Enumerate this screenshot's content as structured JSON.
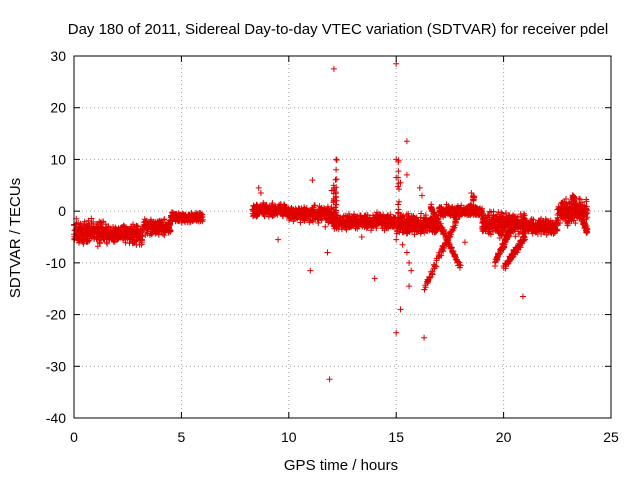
{
  "chart_data": {
    "type": "scatter",
    "title": "Day 180 of 2011, Sidereal Day-to-day VTEC variation (SDTVAR) for receiver pdel",
    "xlabel": "GPS time / hours",
    "ylabel": "SDTVAR / TECUs",
    "xlim": [
      0,
      25
    ],
    "ylim": [
      -40,
      30
    ],
    "xticks": [
      0,
      5,
      10,
      15,
      20,
      25
    ],
    "yticks": [
      -40,
      -30,
      -20,
      -10,
      0,
      10,
      20,
      30
    ],
    "grid": true,
    "marker": "+",
    "colors": {
      "points": "#e00000",
      "axes": "#000000",
      "grid": "#a0a0a0"
    },
    "segments": [
      {
        "x0": 0.0,
        "x1": 1.4,
        "center": -4,
        "spread": 3
      },
      {
        "x0": 1.4,
        "x1": 3.2,
        "center": -4.5,
        "spread": 2.5
      },
      {
        "x0": 3.2,
        "x1": 4.5,
        "center": -3,
        "spread": 2
      },
      {
        "x0": 4.5,
        "x1": 6.0,
        "center": -1.2,
        "spread": 1.2
      },
      {
        "x0": 8.3,
        "x1": 10.0,
        "center": 0.2,
        "spread": 1.8
      },
      {
        "x0": 10.0,
        "x1": 12.0,
        "center": -0.5,
        "spread": 2
      },
      {
        "x0": 12.0,
        "x1": 15.0,
        "center": -2,
        "spread": 2
      },
      {
        "x0": 15.0,
        "x1": 17.0,
        "center": -2.5,
        "spread": 2.5
      },
      {
        "x0": 17.0,
        "x1": 19.0,
        "center": 0,
        "spread": 1.5
      },
      {
        "x0": 19.0,
        "x1": 21.0,
        "center": -2.5,
        "spread": 3
      },
      {
        "x0": 21.0,
        "x1": 22.5,
        "center": -3,
        "spread": 2
      },
      {
        "x0": 22.5,
        "x1": 23.9,
        "center": 0,
        "spread": 3
      }
    ],
    "branches": [
      {
        "x0": 16.3,
        "y0": -15,
        "x1": 18.0,
        "y1": 0,
        "spread": 1
      },
      {
        "x0": 16.6,
        "y0": 1,
        "x1": 18.0,
        "y1": -11,
        "spread": 1
      },
      {
        "x0": 19.6,
        "y0": -10,
        "x1": 20.5,
        "y1": -2,
        "spread": 1
      },
      {
        "x0": 20.0,
        "y0": -11,
        "x1": 21.0,
        "y1": -5,
        "spread": 1
      },
      {
        "x0": 23.2,
        "y0": 3,
        "x1": 23.9,
        "y1": -4,
        "spread": 1
      }
    ],
    "outliers": [
      [
        12.1,
        27.5
      ],
      [
        15.0,
        28.5
      ],
      [
        11.9,
        -32.5
      ],
      [
        15.0,
        -23.5
      ],
      [
        16.3,
        -24.5
      ],
      [
        15.2,
        -19
      ],
      [
        15.6,
        -14.5
      ],
      [
        14.0,
        -13
      ],
      [
        20.9,
        -16.5
      ],
      [
        11.0,
        -11.5
      ],
      [
        15.5,
        13.5
      ],
      [
        15.0,
        10
      ],
      [
        15.1,
        9.5
      ],
      [
        12.2,
        10
      ],
      [
        12.2,
        8
      ],
      [
        15.0,
        6.5
      ],
      [
        15.2,
        5.5
      ],
      [
        15.5,
        7
      ],
      [
        11.1,
        6
      ],
      [
        8.6,
        4.5
      ],
      [
        8.7,
        3.5
      ],
      [
        16.1,
        4.5
      ],
      [
        16.2,
        3
      ],
      [
        18.5,
        3.5
      ],
      [
        18.6,
        2
      ],
      [
        9.5,
        -5.5
      ],
      [
        11.8,
        -8
      ],
      [
        15.0,
        -5.5
      ],
      [
        15.3,
        -6.5
      ],
      [
        15.6,
        -10
      ],
      [
        15.7,
        -11.5
      ],
      [
        15.2,
        -3.5
      ],
      [
        15.5,
        -8
      ],
      [
        12.0,
        4
      ],
      [
        11.7,
        -3
      ],
      [
        10.9,
        -1.5
      ],
      [
        13.4,
        -5
      ],
      [
        17.2,
        -4
      ],
      [
        18.2,
        -6
      ],
      [
        18.0,
        -10.5
      ]
    ],
    "spikes": [
      {
        "x": 12.2,
        "y0": -2,
        "y1": 10
      },
      {
        "x": 15.1,
        "y0": -3,
        "y1": 10
      },
      {
        "x": 18.6,
        "y0": 0,
        "y1": 3
      },
      {
        "x": 12.1,
        "y0": -1,
        "y1": 5
      }
    ]
  }
}
